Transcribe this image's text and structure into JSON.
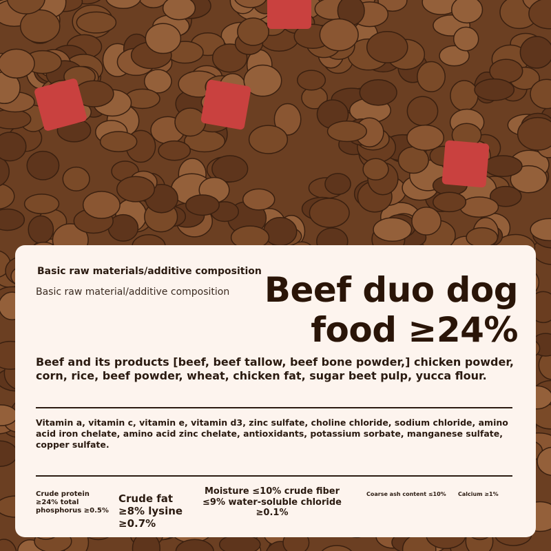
{
  "background": {
    "image": "dog food kibble with red beef cubes",
    "kibble_color": "#7a4a28",
    "beef_color": "#c9413f"
  },
  "card": {
    "subtitle_1": "Basic raw materials/additive composition",
    "subtitle_2": "Basic raw material/additive composition",
    "title_line1": "Beef duo dog",
    "title_line2": "food ≥24%",
    "ingredients": "Beef and its products [beef, beef tallow, beef bone powder,] chicken powder, corn, rice, beef powder, wheat, chicken fat, sugar beet pulp, yucca flour.",
    "additives": "Vitamin a, vitamin c, vitamin e, vitamin d3, zinc sulfate, choline chloride, sodium chloride, amino acid iron chelate, amino acid zinc chelate, antioxidants, potassium sorbate, manganese sulfate, copper sulfate.",
    "nutrition": [
      "Crude protein ≥24% total phosphorus ≥0.5%",
      "Crude fat ≥8% lysine ≥0.7%",
      "Moisture ≤10% crude fiber ≤9% water-soluble chloride ≥0.1%",
      "Coarse ash content ≤10%",
      "Calcium ≥1%"
    ]
  }
}
